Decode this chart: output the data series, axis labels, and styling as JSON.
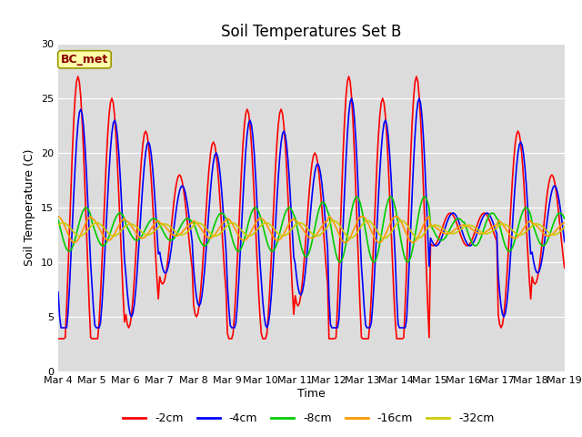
{
  "title": "Soil Temperatures Set B",
  "xlabel": "Time",
  "ylabel": "Soil Temperature (C)",
  "annotation": "BC_met",
  "ylim": [
    0,
    30
  ],
  "x_tick_labels": [
    "Mar 4",
    "Mar 5",
    "Mar 6",
    "Mar 7",
    "Mar 8",
    "Mar 9",
    "Mar 10",
    "Mar 11",
    "Mar 12",
    "Mar 13",
    "Mar 14",
    "Mar 15",
    "Mar 16",
    "Mar 17",
    "Mar 18",
    "Mar 19"
  ],
  "series_colors": [
    "#ff0000",
    "#0000ff",
    "#00cc00",
    "#ff9900",
    "#cccc00"
  ],
  "series_labels": [
    "-2cm",
    "-4cm",
    "-8cm",
    "-16cm",
    "-32cm"
  ],
  "background_color": "#dcdcdc",
  "title_fontsize": 12,
  "legend_fontsize": 9,
  "tick_fontsize": 8,
  "n_days": 15,
  "n_per_day": 24
}
